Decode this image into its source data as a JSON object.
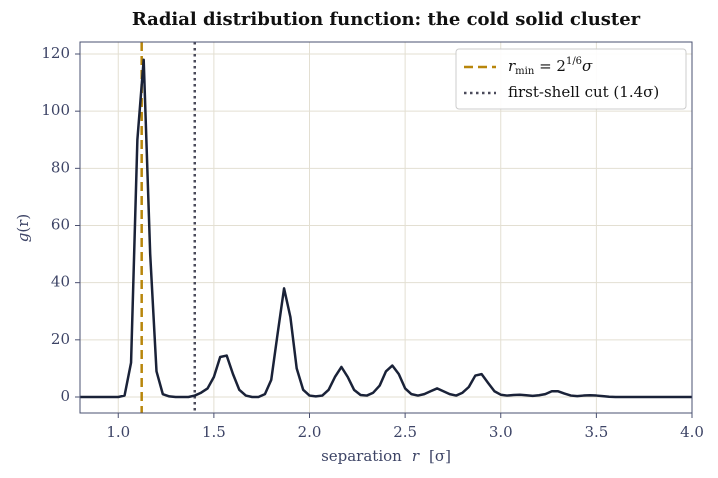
{
  "chart_data": {
    "type": "line",
    "title": "Radial distribution function: the cold solid cluster",
    "x_label": {
      "text": "separation",
      "var": "r",
      "unit": "[σ]"
    },
    "y_label": {
      "func": "g",
      "arg": "(r)"
    },
    "x": [
      0.8,
      1.0,
      1.033,
      1.067,
      1.1,
      1.133,
      1.167,
      1.2,
      1.233,
      1.267,
      1.3,
      1.333,
      1.367,
      1.4,
      1.433,
      1.467,
      1.5,
      1.533,
      1.567,
      1.6,
      1.633,
      1.667,
      1.7,
      1.733,
      1.767,
      1.8,
      1.833,
      1.867,
      1.9,
      1.933,
      1.967,
      2.0,
      2.033,
      2.067,
      2.1,
      2.133,
      2.167,
      2.2,
      2.233,
      2.267,
      2.3,
      2.333,
      2.367,
      2.4,
      2.433,
      2.467,
      2.5,
      2.533,
      2.567,
      2.6,
      2.633,
      2.667,
      2.7,
      2.733,
      2.767,
      2.8,
      2.833,
      2.867,
      2.9,
      2.933,
      2.967,
      3.0,
      3.033,
      3.067,
      3.1,
      3.133,
      3.167,
      3.2,
      3.233,
      3.267,
      3.3,
      3.333,
      3.367,
      3.4,
      3.433,
      3.467,
      3.5,
      3.533,
      3.567,
      3.6,
      3.633,
      4.0
    ],
    "series": [
      {
        "color": "#1a2238",
        "values": [
          0,
          0,
          0.5,
          12,
          90,
          118,
          50,
          9,
          1,
          0.2,
          0,
          0,
          0,
          0.5,
          1.5,
          3,
          7,
          14,
          14.5,
          8,
          2.5,
          0.5,
          0,
          0,
          1,
          6,
          22,
          38,
          28,
          10,
          2.5,
          0.5,
          0.2,
          0.5,
          2.5,
          7,
          10.5,
          7,
          2.5,
          0.7,
          0.5,
          1.5,
          4,
          9,
          11,
          8,
          3,
          1,
          0.5,
          1,
          2,
          3,
          2,
          1,
          0.5,
          1.5,
          3.5,
          7.5,
          8,
          5,
          2,
          0.8,
          0.5,
          0.7,
          0.8,
          0.6,
          0.4,
          0.6,
          1,
          2,
          2,
          1.2,
          0.5,
          0.3,
          0.5,
          0.6,
          0.5,
          0.3,
          0.1,
          0,
          0,
          0
        ]
      }
    ],
    "vlines": [
      {
        "x": 1.1225,
        "color": "#b8860b",
        "style": "dashed",
        "label": {
          "base": "r",
          "sub": "min",
          "mid": " = 2",
          "sup": "1/6",
          "tail": "σ"
        }
      },
      {
        "x": 1.4,
        "color": "#4a4a5a",
        "style": "dotted",
        "label": {
          "text": "first-shell cut (1.4σ)"
        }
      }
    ],
    "xlim": [
      0.8,
      4.0
    ],
    "ylim": [
      -5.6,
      124.2
    ],
    "xticks": [
      {
        "value": 1,
        "label": "1.0"
      },
      {
        "value": 1.5,
        "label": "1.5"
      },
      {
        "value": 2,
        "label": "2.0"
      },
      {
        "value": 2.5,
        "label": "2.5"
      },
      {
        "value": 3,
        "label": "3.0"
      },
      {
        "value": 3.5,
        "label": "3.5"
      },
      {
        "value": 4,
        "label": "4.0"
      }
    ],
    "yticks": [
      0,
      20,
      40,
      60,
      80,
      100,
      120
    ],
    "grid": true,
    "legend": "upper right"
  }
}
